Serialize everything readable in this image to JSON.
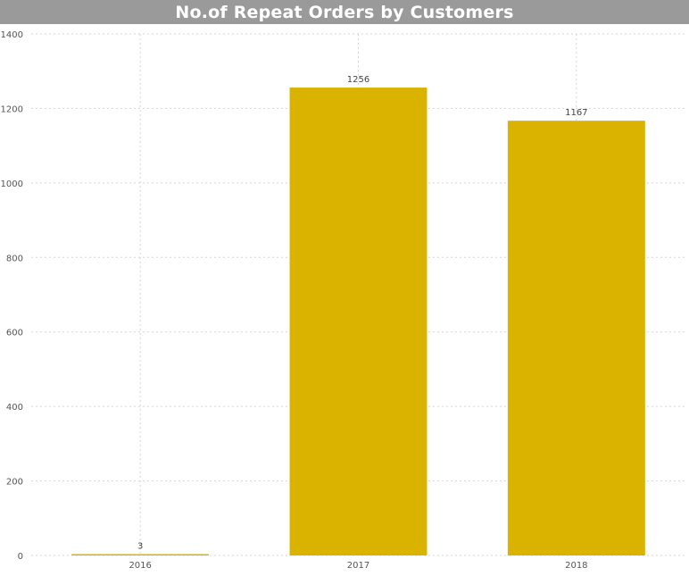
{
  "chart_data": {
    "type": "bar",
    "title": "No.of Repeat Orders by Customers",
    "categories": [
      "2016",
      "2017",
      "2018"
    ],
    "values": [
      3,
      1256,
      1167
    ],
    "data_labels": [
      "3",
      "1256",
      "1167"
    ],
    "xlabel": "",
    "ylabel": "",
    "ylim": [
      0,
      1400
    ],
    "yticks": [
      0,
      200,
      400,
      600,
      800,
      1000,
      1200,
      1400
    ],
    "grid": true,
    "legend": "none",
    "colors": {
      "bar": "#D9B300",
      "title_bar": "#9A9A9A",
      "title_text": "#FFFFFF"
    }
  }
}
